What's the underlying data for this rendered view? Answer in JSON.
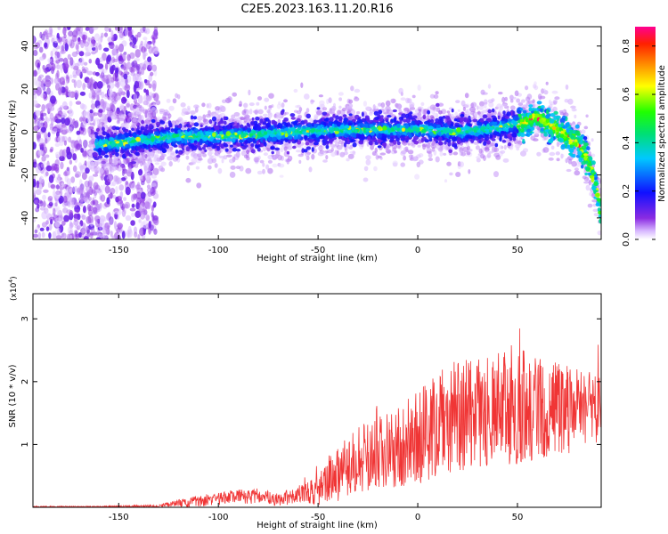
{
  "title": "C2E5.2023.163.11.20.R16",
  "chart_data": [
    {
      "type": "heatmap",
      "xlabel": "Height of straight line (km)",
      "ylabel": "Frequency (Hz)",
      "xlim": [
        -193,
        92
      ],
      "ylim": [
        -50,
        49
      ],
      "xticks": [
        -150,
        -100,
        -50,
        0,
        50
      ],
      "yticks": [
        -40,
        -20,
        0,
        20,
        40
      ],
      "colorbar": {
        "label": "Normalized spectral amplitude",
        "ticks": [
          0.0,
          0.2,
          0.4,
          0.6,
          0.8
        ],
        "range": [
          0,
          0.88
        ]
      },
      "ridge": {
        "x": [
          -160,
          -140,
          -120,
          -100,
          -80,
          -60,
          -40,
          -20,
          0,
          20,
          40,
          55,
          60,
          70,
          80,
          85,
          90,
          93
        ],
        "y": [
          -6,
          -4,
          -2,
          -2,
          -1,
          0,
          1,
          1,
          1,
          0,
          2,
          5,
          7,
          1,
          -5,
          -12,
          -28,
          -45
        ]
      }
    },
    {
      "type": "line",
      "xlabel": "Height of straight line (km)",
      "ylabel": "SNR (10 * v/v)",
      "ymultiplier_base": "(x10",
      "ymultiplier_exp": "4",
      "ymultiplier_close": ")",
      "xlim": [
        -193,
        92
      ],
      "ylim": [
        0,
        3.4
      ],
      "xticks": [
        -150,
        -100,
        -50,
        0,
        50
      ],
      "yticks": [
        1,
        2,
        3
      ],
      "series": [
        {
          "color": "#f03535",
          "envelope_x": [
            -193,
            -160,
            -130,
            -120,
            -110,
            -100,
            -90,
            -80,
            -70,
            -60,
            -50,
            -45,
            -40,
            -30,
            -20,
            -10,
            0,
            10,
            20,
            30,
            40,
            50,
            60,
            70,
            80,
            92
          ],
          "envelope_mean": [
            0.01,
            0.01,
            0.02,
            0.06,
            0.1,
            0.13,
            0.17,
            0.18,
            0.12,
            0.2,
            0.28,
            0.45,
            0.55,
            0.75,
            0.85,
            0.95,
            1.1,
            1.3,
            1.45,
            1.5,
            1.55,
            1.65,
            1.6,
            1.55,
            1.55,
            1.6
          ],
          "envelope_spread": [
            0.01,
            0.01,
            0.02,
            0.06,
            0.09,
            0.1,
            0.12,
            0.12,
            0.1,
            0.14,
            0.25,
            0.35,
            0.45,
            0.55,
            0.6,
            0.65,
            0.75,
            0.85,
            0.9,
            0.85,
            0.9,
            1.0,
            0.85,
            0.75,
            0.65,
            0.55
          ]
        }
      ]
    }
  ]
}
